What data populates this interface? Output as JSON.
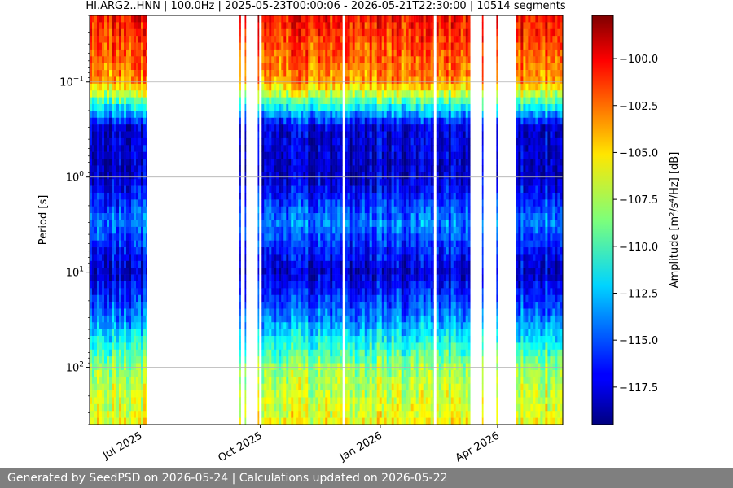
{
  "chart_data": {
    "type": "heatmap",
    "title": "HI.ARG2..HNN | 100.0Hz | 2025-05-23T00:00:06 - 2026-05-21T22:30:00 | 10514 segments",
    "xlabel": "",
    "ylabel": "Period [s]",
    "x_range": [
      "2025-05-23",
      "2026-05-21"
    ],
    "y_scale": "log",
    "y_inverted": true,
    "ylim": [
      0.02,
      400
    ],
    "x_tick_labels": [
      "Jul 2025",
      "Oct 2025",
      "Jan 2026",
      "Apr 2026"
    ],
    "x_ticks": [
      "2025-07-01",
      "2025-10-01",
      "2026-01-01",
      "2026-04-01"
    ],
    "y_tick_labels": [
      {
        "base": "10",
        "exp": "−1"
      },
      {
        "base": "10",
        "exp": "0"
      },
      {
        "base": "10",
        "exp": "1"
      },
      {
        "base": "10",
        "exp": "2"
      }
    ],
    "y_ticks": [
      0.1,
      1,
      10,
      100
    ],
    "grid": "horizontal",
    "colormap": "jet",
    "colorbar": {
      "label": "Amplitude [m²/s⁴/Hz] [dB]",
      "range": [
        -119.5,
        -97.7
      ],
      "tick_labels": [
        "−100.0",
        "−102.5",
        "−105.0",
        "−107.5",
        "−110.0",
        "−112.5",
        "−115.0",
        "−117.5"
      ],
      "tick_values": [
        -100,
        -102.5,
        -105,
        -107.5,
        -110,
        -112.5,
        -115,
        -117.5
      ]
    },
    "data_intervals": [
      [
        "2025-05-23",
        "2025-07-06"
      ],
      [
        "2025-09-15",
        "2025-09-16"
      ],
      [
        "2025-09-19",
        "2025-09-20"
      ],
      [
        "2025-09-29",
        "2025-09-30"
      ],
      [
        "2025-10-02",
        "2025-12-03"
      ],
      [
        "2025-12-05",
        "2026-02-11"
      ],
      [
        "2026-02-13",
        "2026-03-11"
      ],
      [
        "2026-03-20",
        "2026-03-21"
      ],
      [
        "2026-03-31",
        "2026-04-01"
      ],
      [
        "2026-04-15",
        "2026-05-21"
      ]
    ],
    "spectrum_profile": {
      "period_s": [
        0.02,
        0.1,
        0.3,
        1,
        3,
        10,
        30,
        100,
        400
      ],
      "amplitude_db": [
        -100.5,
        -103.5,
        -117.5,
        -118.0,
        -114.0,
        -118.0,
        -114.0,
        -108.0,
        -106.0
      ]
    }
  },
  "footer": {
    "text": "Generated by SeedPSD on 2026-05-24 | Calculations updated on 2026-05-22"
  },
  "colors": {
    "footer_bg": "#7f7f7f",
    "grid": "#b0b0b0"
  }
}
